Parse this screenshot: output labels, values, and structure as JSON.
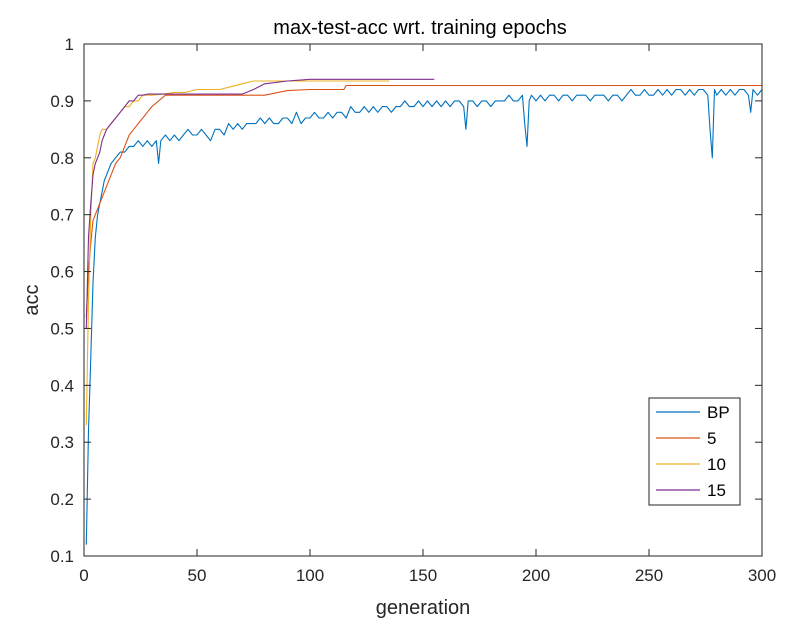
{
  "chart_data": {
    "type": "line",
    "title": "max-test-acc wrt. training epochs",
    "xlabel": "generation",
    "ylabel": "acc",
    "xlim": [
      0,
      300
    ],
    "ylim": [
      0.1,
      1
    ],
    "xticks": [
      0,
      50,
      100,
      150,
      200,
      250,
      300
    ],
    "yticks": [
      0.1,
      0.2,
      0.3,
      0.4,
      0.5,
      0.6,
      0.7,
      0.8,
      0.9,
      1
    ],
    "ytick_labels": [
      "0.1",
      "0.2",
      "0.3",
      "0.4",
      "0.5",
      "0.6",
      "0.7",
      "0.8",
      "0.9",
      "1"
    ],
    "grid": false,
    "legend_position": "bottom-right",
    "series": [
      {
        "name": "BP",
        "color": "#0072BD",
        "x": [
          1,
          2,
          3,
          4,
          5,
          6,
          7,
          8,
          9,
          10,
          12,
          14,
          16,
          18,
          20,
          22,
          24,
          26,
          28,
          30,
          32,
          33,
          34,
          36,
          38,
          40,
          42,
          44,
          46,
          48,
          50,
          52,
          54,
          56,
          58,
          60,
          62,
          64,
          66,
          68,
          70,
          72,
          74,
          76,
          78,
          80,
          82,
          84,
          86,
          88,
          90,
          92,
          94,
          96,
          98,
          100,
          102,
          104,
          106,
          108,
          110,
          112,
          114,
          116,
          118,
          120,
          122,
          124,
          126,
          128,
          130,
          132,
          134,
          136,
          138,
          140,
          142,
          144,
          146,
          148,
          150,
          152,
          154,
          156,
          158,
          160,
          162,
          164,
          166,
          168,
          169,
          170,
          172,
          174,
          176,
          178,
          180,
          182,
          184,
          186,
          188,
          190,
          192,
          194,
          195,
          196,
          197,
          198,
          200,
          202,
          204,
          206,
          208,
          210,
          212,
          214,
          216,
          218,
          220,
          222,
          224,
          226,
          228,
          230,
          232,
          234,
          236,
          238,
          240,
          242,
          244,
          246,
          248,
          250,
          252,
          254,
          256,
          258,
          260,
          262,
          264,
          266,
          268,
          270,
          272,
          274,
          276,
          277,
          278,
          279,
          280,
          282,
          284,
          286,
          288,
          290,
          292,
          294,
          295,
          296,
          298,
          300
        ],
        "y": [
          0.12,
          0.32,
          0.45,
          0.58,
          0.66,
          0.7,
          0.72,
          0.74,
          0.76,
          0.77,
          0.79,
          0.8,
          0.81,
          0.81,
          0.82,
          0.82,
          0.83,
          0.82,
          0.83,
          0.82,
          0.83,
          0.79,
          0.83,
          0.84,
          0.83,
          0.84,
          0.83,
          0.84,
          0.85,
          0.84,
          0.84,
          0.85,
          0.84,
          0.83,
          0.85,
          0.85,
          0.84,
          0.86,
          0.85,
          0.86,
          0.85,
          0.86,
          0.86,
          0.86,
          0.87,
          0.86,
          0.87,
          0.86,
          0.86,
          0.87,
          0.87,
          0.86,
          0.88,
          0.86,
          0.87,
          0.87,
          0.88,
          0.87,
          0.87,
          0.88,
          0.87,
          0.88,
          0.88,
          0.87,
          0.89,
          0.88,
          0.88,
          0.89,
          0.88,
          0.89,
          0.88,
          0.89,
          0.89,
          0.88,
          0.89,
          0.89,
          0.9,
          0.89,
          0.89,
          0.9,
          0.89,
          0.9,
          0.89,
          0.9,
          0.89,
          0.9,
          0.89,
          0.9,
          0.9,
          0.89,
          0.85,
          0.9,
          0.9,
          0.89,
          0.9,
          0.9,
          0.89,
          0.9,
          0.9,
          0.9,
          0.91,
          0.9,
          0.9,
          0.91,
          0.86,
          0.82,
          0.9,
          0.91,
          0.9,
          0.91,
          0.9,
          0.91,
          0.91,
          0.9,
          0.91,
          0.91,
          0.9,
          0.91,
          0.91,
          0.91,
          0.9,
          0.91,
          0.91,
          0.91,
          0.9,
          0.91,
          0.91,
          0.9,
          0.91,
          0.92,
          0.91,
          0.91,
          0.92,
          0.91,
          0.91,
          0.92,
          0.91,
          0.92,
          0.91,
          0.92,
          0.92,
          0.91,
          0.92,
          0.91,
          0.92,
          0.92,
          0.91,
          0.85,
          0.8,
          0.92,
          0.91,
          0.92,
          0.91,
          0.92,
          0.91,
          0.92,
          0.92,
          0.91,
          0.88,
          0.92,
          0.91,
          0.92
        ]
      },
      {
        "name": "5",
        "color": "#D95319",
        "x": [
          1,
          2,
          3,
          4,
          5,
          6,
          7,
          8,
          10,
          12,
          14,
          16,
          18,
          20,
          22,
          24,
          26,
          28,
          30,
          33,
          36,
          40,
          45,
          50,
          55,
          60,
          65,
          70,
          75,
          80,
          90,
          100,
          110,
          115,
          116,
          130,
          150,
          200,
          250,
          300
        ],
        "y": [
          0.52,
          0.6,
          0.65,
          0.69,
          0.7,
          0.71,
          0.72,
          0.73,
          0.75,
          0.77,
          0.79,
          0.8,
          0.82,
          0.84,
          0.85,
          0.86,
          0.87,
          0.88,
          0.89,
          0.9,
          0.91,
          0.91,
          0.91,
          0.91,
          0.91,
          0.91,
          0.91,
          0.91,
          0.91,
          0.91,
          0.918,
          0.92,
          0.92,
          0.92,
          0.927,
          0.927,
          0.927,
          0.927,
          0.927,
          0.927
        ]
      },
      {
        "name": "10",
        "color": "#EDB120",
        "x": [
          1,
          2,
          3,
          4,
          5,
          6,
          7,
          8,
          9,
          10,
          12,
          14,
          16,
          18,
          20,
          22,
          24,
          26,
          28,
          30,
          35,
          40,
          45,
          50,
          55,
          60,
          65,
          70,
          75,
          80,
          90,
          100,
          110,
          120,
          135
        ],
        "y": [
          0.33,
          0.55,
          0.7,
          0.79,
          0.8,
          0.82,
          0.84,
          0.85,
          0.85,
          0.85,
          0.86,
          0.87,
          0.88,
          0.89,
          0.89,
          0.9,
          0.9,
          0.91,
          0.91,
          0.91,
          0.912,
          0.915,
          0.915,
          0.92,
          0.92,
          0.92,
          0.925,
          0.93,
          0.935,
          0.935,
          0.935,
          0.935,
          0.935,
          0.935,
          0.935
        ]
      },
      {
        "name": "15",
        "color": "#7E2F8E",
        "x": [
          1,
          2,
          3,
          4,
          5,
          6,
          7,
          8,
          9,
          10,
          12,
          14,
          16,
          18,
          20,
          22,
          24,
          26,
          28,
          30,
          35,
          40,
          45,
          50,
          55,
          60,
          65,
          70,
          75,
          80,
          90,
          100,
          110,
          120,
          130,
          140,
          155
        ],
        "y": [
          0.5,
          0.66,
          0.72,
          0.77,
          0.79,
          0.8,
          0.81,
          0.83,
          0.84,
          0.85,
          0.86,
          0.87,
          0.88,
          0.89,
          0.9,
          0.9,
          0.91,
          0.91,
          0.912,
          0.912,
          0.912,
          0.912,
          0.912,
          0.912,
          0.912,
          0.912,
          0.912,
          0.912,
          0.92,
          0.93,
          0.935,
          0.938,
          0.938,
          0.938,
          0.938,
          0.938,
          0.938
        ]
      }
    ]
  }
}
